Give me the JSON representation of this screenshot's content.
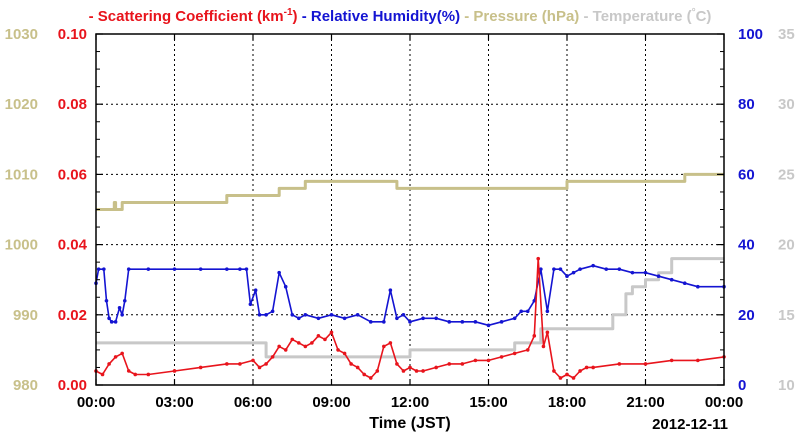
{
  "chart_data": {
    "type": "line",
    "title": "",
    "legend": [
      {
        "text": "Scattering Coefficient (km",
        "sup": "-1",
        "after": ")",
        "color": "#e8141c"
      },
      {
        "text": "Relative Humidity(%)",
        "color": "#1414d2"
      },
      {
        "text": "Pressure (hPa)",
        "color": "#c8c08a"
      },
      {
        "text": "Temperature (",
        "sup": "°",
        "after": "C)",
        "color": "#c8c8c8"
      }
    ],
    "legend_placement": "top",
    "xlabel": "Time (JST)",
    "date_label": "2012-12-11",
    "x_range": [
      0,
      24
    ],
    "x_ticks": [
      "00:00",
      "03:00",
      "06:00",
      "09:00",
      "12:00",
      "15:00",
      "18:00",
      "21:00",
      "00:00"
    ],
    "grid": true,
    "axes": {
      "pressure": {
        "ylim": [
          980,
          1030
        ],
        "ticks": [
          "980",
          "990",
          "1000",
          "1010",
          "1020",
          "1030"
        ],
        "color": "#c8c08a"
      },
      "scattering": {
        "ylim": [
          0.0,
          0.1
        ],
        "ticks": [
          "0.00",
          "0.02",
          "0.04",
          "0.06",
          "0.08",
          "0.10"
        ],
        "color": "#e8141c"
      },
      "humidity": {
        "ylim": [
          0,
          100
        ],
        "ticks": [
          "0",
          "20",
          "40",
          "60",
          "80",
          "100"
        ],
        "color": "#1414d2"
      },
      "temperature": {
        "ylim": [
          10,
          35
        ],
        "ticks": [
          "10",
          "15",
          "20",
          "25",
          "30",
          "35"
        ],
        "color": "#c8c8c8"
      }
    },
    "series": [
      {
        "name": "Scattering Coefficient",
        "axis": "scattering",
        "color": "#e8141c",
        "x": [
          0,
          0.25,
          0.5,
          0.75,
          1.0,
          1.25,
          1.5,
          2,
          3,
          4,
          5,
          5.5,
          6.0,
          6.25,
          6.5,
          6.75,
          7.0,
          7.25,
          7.5,
          7.75,
          8.0,
          8.25,
          8.5,
          8.75,
          9.0,
          9.25,
          9.5,
          9.75,
          10.0,
          10.25,
          10.5,
          10.75,
          11.0,
          11.25,
          11.5,
          11.75,
          12.0,
          12.25,
          12.5,
          13,
          13.5,
          14,
          14.5,
          15,
          15.5,
          16,
          16.5,
          16.75,
          16.9,
          17.1,
          17.25,
          17.5,
          17.75,
          18.0,
          18.25,
          18.5,
          18.75,
          19,
          20,
          21,
          22,
          23,
          24
        ],
        "y": [
          0.004,
          0.003,
          0.006,
          0.008,
          0.009,
          0.004,
          0.003,
          0.003,
          0.004,
          0.005,
          0.006,
          0.006,
          0.007,
          0.005,
          0.006,
          0.008,
          0.011,
          0.01,
          0.013,
          0.012,
          0.011,
          0.012,
          0.014,
          0.013,
          0.015,
          0.01,
          0.009,
          0.006,
          0.005,
          0.003,
          0.002,
          0.004,
          0.011,
          0.012,
          0.006,
          0.004,
          0.005,
          0.004,
          0.004,
          0.005,
          0.006,
          0.006,
          0.007,
          0.007,
          0.008,
          0.009,
          0.01,
          0.014,
          0.036,
          0.011,
          0.015,
          0.004,
          0.002,
          0.003,
          0.002,
          0.004,
          0.005,
          0.005,
          0.006,
          0.006,
          0.007,
          0.007,
          0.008
        ]
      },
      {
        "name": "Relative Humidity",
        "axis": "humidity",
        "color": "#1414d2",
        "x": [
          0,
          0.1,
          0.3,
          0.4,
          0.5,
          0.6,
          0.75,
          0.9,
          1.0,
          1.1,
          1.25,
          2,
          3,
          4,
          5,
          5.5,
          5.75,
          5.9,
          6.1,
          6.25,
          6.5,
          6.75,
          7.0,
          7.25,
          7.5,
          7.75,
          8.0,
          8.5,
          9.0,
          9.5,
          10,
          10.5,
          11.0,
          11.25,
          11.5,
          11.75,
          12.0,
          12.5,
          13,
          13.5,
          14,
          14.5,
          15,
          15.5,
          16,
          16.25,
          16.5,
          16.75,
          17.0,
          17.25,
          17.5,
          17.75,
          18.0,
          18.25,
          18.5,
          19.0,
          19.5,
          20,
          20.5,
          21,
          21.5,
          22,
          22.5,
          23,
          24
        ],
        "y": [
          29,
          33,
          33,
          24,
          19,
          18,
          18,
          22,
          20,
          24,
          33,
          33,
          33,
          33,
          33,
          33,
          33,
          23,
          27,
          20,
          20,
          21,
          32,
          28,
          20,
          19,
          20,
          19,
          20,
          19,
          20,
          18,
          18,
          27,
          19,
          20,
          18,
          19,
          19,
          18,
          18,
          18,
          17,
          18,
          19,
          21,
          21,
          24,
          33,
          21,
          33,
          33,
          31,
          32,
          33,
          34,
          33,
          33,
          32,
          32,
          31,
          30,
          29,
          28,
          28
        ]
      },
      {
        "name": "Pressure",
        "axis": "pressure",
        "color": "#c8c08a",
        "x": [
          0,
          0.6,
          0.7,
          0.75,
          1.0,
          2.0,
          3.0,
          4.0,
          5.0,
          6.0,
          6.5,
          7.0,
          7.5,
          8.0,
          9.0,
          10.0,
          11.0,
          11.5,
          12.0,
          13.0,
          14.0,
          15.0,
          16.0,
          17.0,
          18.0,
          19.0,
          20.0,
          21.0,
          22.0,
          22.5,
          23.0,
          24.0
        ],
        "y": [
          1005,
          1005,
          1006,
          1005,
          1006,
          1006,
          1006,
          1006,
          1007,
          1007,
          1007,
          1008,
          1008,
          1009,
          1009,
          1009,
          1009,
          1008,
          1008,
          1008,
          1008,
          1008,
          1008,
          1008,
          1009,
          1009,
          1009,
          1009,
          1009,
          1010,
          1010,
          1010
        ]
      },
      {
        "name": "Temperature",
        "axis": "temperature",
        "color": "#c8c8c8",
        "x": [
          0,
          1,
          2,
          3,
          4,
          5,
          6.0,
          6.5,
          7,
          8,
          9,
          10,
          11.5,
          12,
          13,
          14,
          15,
          16,
          17,
          18,
          19,
          19.75,
          20.25,
          20.5,
          21.0,
          21.5,
          22.0,
          22.5,
          23,
          24
        ],
        "y": [
          13.0,
          13.0,
          13.0,
          13.0,
          13.0,
          13.0,
          13.0,
          12.0,
          12.0,
          12.0,
          12.0,
          12.0,
          12.0,
          12.5,
          12.5,
          12.5,
          12.5,
          13.0,
          14.0,
          14.0,
          14.0,
          15.0,
          16.5,
          17.0,
          17.5,
          18.0,
          19.0,
          19.0,
          19.0,
          19.0
        ]
      }
    ]
  }
}
